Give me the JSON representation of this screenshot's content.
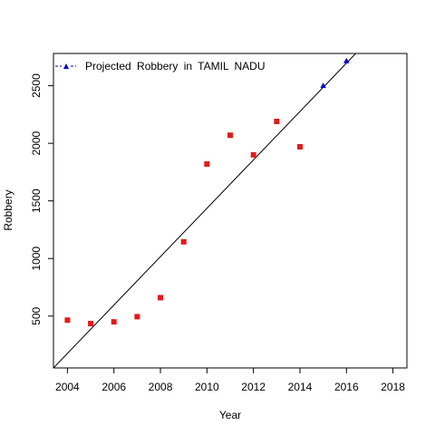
{
  "chart_data": {
    "type": "scatter",
    "title": "",
    "xlabel": "Year",
    "ylabel": "Robbery",
    "xlim": [
      2003.4,
      2018.6
    ],
    "ylim": [
      50,
      2780
    ],
    "x_ticks": [
      "2004",
      "2006",
      "2008",
      "2010",
      "2012",
      "2014",
      "2016",
      "2018"
    ],
    "y_ticks": [
      "500",
      "1000",
      "1500",
      "2000",
      "2500"
    ],
    "grid": false,
    "legend_position": "top-left",
    "legend": [
      "Projected Robbery in TAMIL NADU"
    ],
    "series": [
      {
        "marker": "square",
        "color": "#e31a1c",
        "points": [
          {
            "x": 2004,
            "y": 465
          },
          {
            "x": 2005,
            "y": 435
          },
          {
            "x": 2006,
            "y": 450
          },
          {
            "x": 2007,
            "y": 495
          },
          {
            "x": 2008,
            "y": 660
          },
          {
            "x": 2009,
            "y": 1145
          },
          {
            "x": 2010,
            "y": 1820
          },
          {
            "x": 2011,
            "y": 2070
          },
          {
            "x": 2012,
            "y": 1900
          },
          {
            "x": 2013,
            "y": 2190
          },
          {
            "x": 2014,
            "y": 1970
          }
        ]
      },
      {
        "name": "Projected Robbery in TAMIL NADU",
        "marker": "triangle",
        "color": "#0000cd",
        "points": [
          {
            "x": 2015,
            "y": 2500
          },
          {
            "x": 2016,
            "y": 2715
          }
        ]
      }
    ],
    "trend_line": {
      "color": "#000000",
      "from": {
        "x": 2003.4,
        "y": 50
      },
      "to": {
        "x": 2016.4,
        "y": 2780
      }
    }
  }
}
